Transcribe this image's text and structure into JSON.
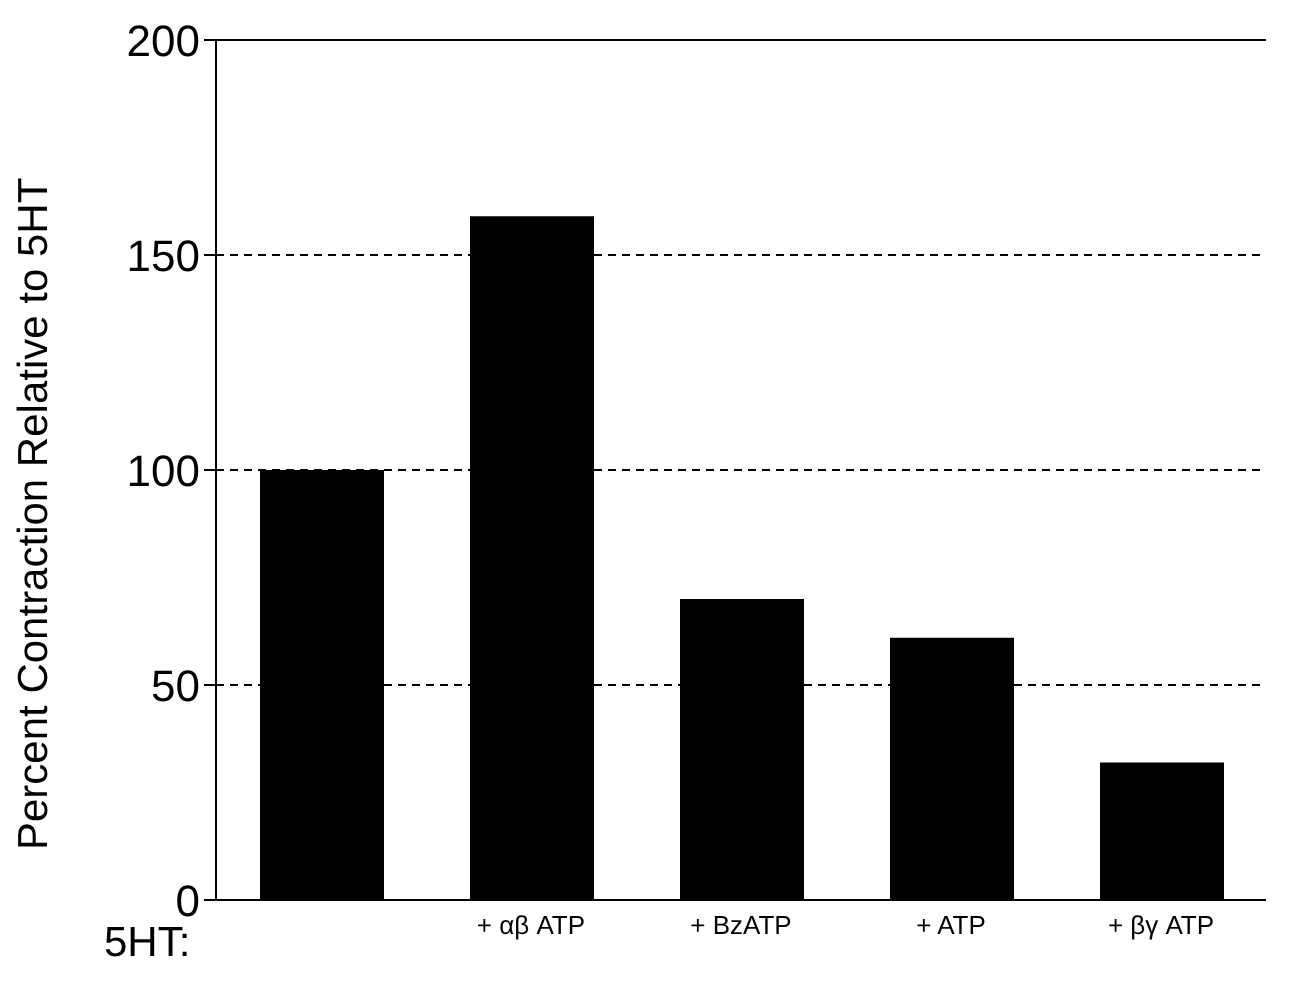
{
  "chart_data": {
    "type": "bar",
    "ylabel": "Percent Contraction Relative to 5HT",
    "annotations": [
      "5HT:"
    ],
    "categories": [
      null,
      "+ αβ ATP",
      "+ BzATP",
      "+ ATP",
      "+ βγ ATP"
    ],
    "values": [
      100,
      159,
      70,
      61,
      32
    ],
    "color": "#000000",
    "ylim": [
      0,
      200
    ],
    "yticks": [
      0,
      50,
      100,
      150,
      200
    ],
    "grid": "y"
  }
}
